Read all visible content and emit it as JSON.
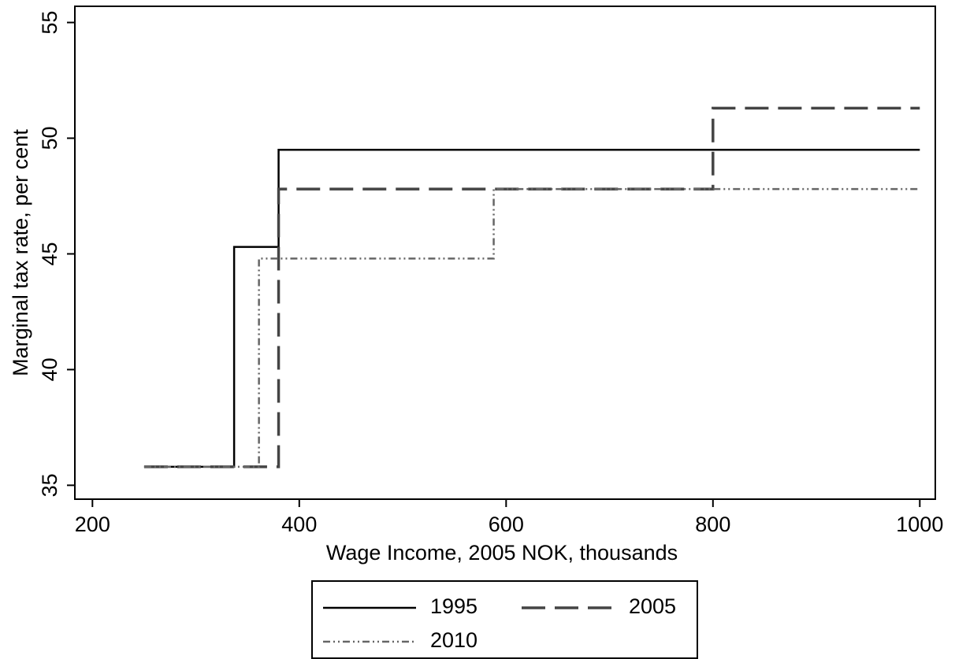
{
  "chart_data": {
    "type": "step",
    "xlabel": "Wage Income, 2005 NOK, thousands",
    "ylabel": "Marginal tax rate, per cent",
    "xlim": [
      183,
      1015
    ],
    "ylim": [
      34.4,
      55.7
    ],
    "xticks": [
      200,
      400,
      600,
      800,
      1000
    ],
    "yticks": [
      35,
      40,
      45,
      50,
      55
    ],
    "grid": false,
    "legend": "bottom",
    "series": [
      {
        "name": "1995",
        "color": "#000000",
        "dash": "solid",
        "x": [
          250,
          337,
          337,
          380,
          380,
          1000
        ],
        "values": [
          35.8,
          35.8,
          45.3,
          45.3,
          49.5,
          49.5
        ]
      },
      {
        "name": "2005",
        "color": "#444444",
        "dash": "long-dash",
        "x": [
          250,
          380,
          380,
          800,
          800,
          1000
        ],
        "values": [
          35.8,
          35.8,
          47.8,
          47.8,
          51.3,
          51.3
        ]
      },
      {
        "name": "2010",
        "color": "#666666",
        "dash": "dash-dot",
        "x": [
          250,
          361,
          361,
          588,
          588,
          1000
        ],
        "values": [
          35.8,
          35.8,
          44.8,
          44.8,
          47.8,
          47.8
        ]
      }
    ]
  }
}
